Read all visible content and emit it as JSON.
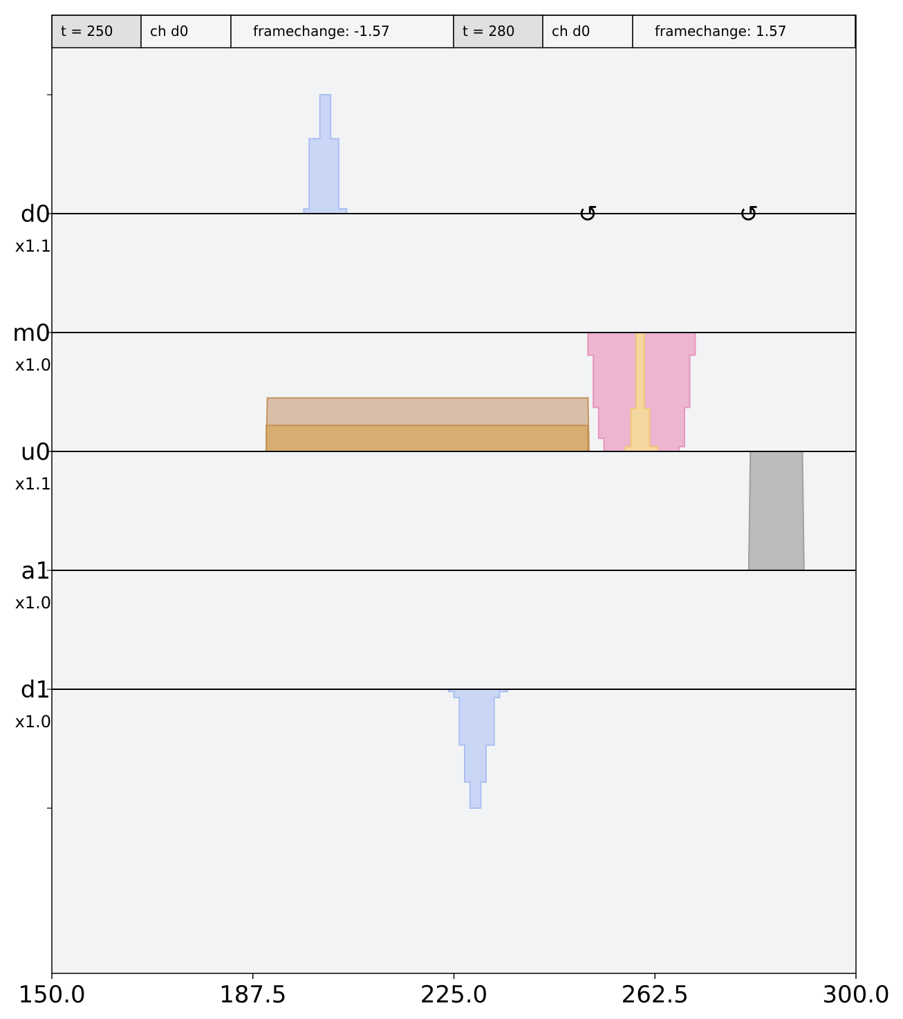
{
  "chart_data": {
    "type": "area",
    "xlim": [
      150.0,
      300.0
    ],
    "xticks": [
      "150.0",
      "187.5",
      "225.0",
      "262.5",
      "300.0"
    ],
    "grid": false,
    "annotations": [
      {
        "time": "t = 250",
        "channel": "ch d0",
        "event": "framechange: -1.57"
      },
      {
        "time": "t = 280",
        "channel": "ch d0",
        "event": "framechange: 1.57"
      }
    ],
    "framechanges": [
      {
        "channel": "d0",
        "t": 250,
        "symbol": "↺"
      },
      {
        "channel": "d0",
        "t": 280,
        "symbol": "↺"
      }
    ],
    "channels": [
      {
        "name": "d0",
        "scale": "x1.1"
      },
      {
        "name": "m0",
        "scale": "x1.0"
      },
      {
        "name": "u0",
        "scale": "x1.1"
      },
      {
        "name": "a1",
        "scale": "x1.0"
      },
      {
        "name": "d1",
        "scale": "x1.0"
      }
    ],
    "colors": {
      "background": "#f2f3f5",
      "drive": "#c8d5f5",
      "drive_edge": "#a8bdf0",
      "measure": "#ecb3d0",
      "measure_edge": "#e88fb8",
      "control_dark": "#d9ad70",
      "control_light": "#d7bda6",
      "control_edge": "#c28f52",
      "control_peak": "#f5d99d",
      "control_peak_edge": "#f0c872",
      "acquire": "#b8b9b8",
      "acquire_edge": "#9a9b9a"
    },
    "series": [
      {
        "channel": "d0",
        "kind": "drive",
        "baseline": 1.0,
        "points": [
          [
            197,
            1.0
          ],
          [
            197,
            1.04
          ],
          [
            198,
            1.04
          ],
          [
            198,
            1.63
          ],
          [
            200,
            1.63
          ],
          [
            200,
            2.0
          ],
          [
            202,
            2.0
          ],
          [
            202,
            1.63
          ],
          [
            203.5,
            1.63
          ],
          [
            203.5,
            1.04
          ],
          [
            205,
            1.04
          ],
          [
            205,
            1.0
          ]
        ]
      },
      {
        "channel": "m0",
        "kind": "measure",
        "baseline": 0.0,
        "points": [
          [
            250,
            0.0
          ],
          [
            250,
            -0.19
          ],
          [
            251,
            -0.19
          ],
          [
            251,
            -0.63
          ],
          [
            252,
            -0.63
          ],
          [
            252,
            -0.89
          ],
          [
            253,
            -0.89
          ],
          [
            253,
            -1.0
          ],
          [
            267,
            -1.0
          ],
          [
            267,
            -0.96
          ],
          [
            268,
            -0.96
          ],
          [
            268,
            -0.63
          ],
          [
            269,
            -0.63
          ],
          [
            269,
            -0.19
          ],
          [
            270,
            -0.19
          ],
          [
            270,
            0.0
          ]
        ]
      },
      {
        "channel": "u0",
        "kind": "control_light",
        "baseline": 0.0,
        "points": [
          [
            190,
            0.0
          ],
          [
            190.2,
            0.45
          ],
          [
            250,
            0.45
          ],
          [
            250.2,
            0.0
          ]
        ]
      },
      {
        "channel": "u0",
        "kind": "control_dark",
        "baseline": 0.0,
        "points": [
          [
            190,
            0.0
          ],
          [
            190,
            0.22
          ],
          [
            250,
            0.22
          ],
          [
            250,
            0.0
          ]
        ]
      },
      {
        "channel": "u0",
        "kind": "control_peak",
        "baseline": 0.0,
        "points": [
          [
            257,
            0.0
          ],
          [
            257,
            0.04
          ],
          [
            258,
            0.04
          ],
          [
            258,
            0.36
          ],
          [
            259,
            0.36
          ],
          [
            259,
            1.0
          ],
          [
            260.5,
            1.0
          ],
          [
            260.5,
            0.36
          ],
          [
            261.5,
            0.36
          ],
          [
            261.5,
            0.04
          ],
          [
            263,
            0.04
          ],
          [
            263,
            0.0
          ]
        ]
      },
      {
        "channel": "a1",
        "kind": "acquire",
        "baseline": 0.0,
        "points": [
          [
            280,
            0.0
          ],
          [
            280.3,
            1.0
          ],
          [
            290,
            1.0
          ],
          [
            290.3,
            0.0
          ]
        ]
      },
      {
        "channel": "d1",
        "kind": "drive",
        "baseline": 0.0,
        "points": [
          [
            224,
            0.0
          ],
          [
            224,
            -0.02
          ],
          [
            225,
            -0.02
          ],
          [
            225,
            -0.07
          ],
          [
            226,
            -0.07
          ],
          [
            226,
            -0.47
          ],
          [
            227,
            -0.47
          ],
          [
            227,
            -0.78
          ],
          [
            228,
            -0.78
          ],
          [
            228,
            -1.0
          ],
          [
            230,
            -1.0
          ],
          [
            230,
            -0.78
          ],
          [
            231,
            -0.78
          ],
          [
            231,
            -0.47
          ],
          [
            232.5,
            -0.47
          ],
          [
            232.5,
            -0.07
          ],
          [
            233.5,
            -0.07
          ],
          [
            233.5,
            -0.02
          ],
          [
            235,
            -0.02
          ],
          [
            235,
            0.0
          ]
        ]
      }
    ]
  }
}
